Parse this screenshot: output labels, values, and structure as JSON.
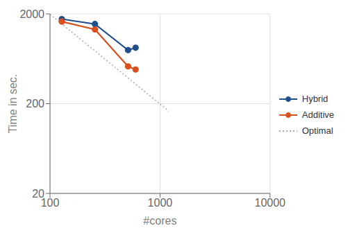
{
  "chart_data": {
    "type": "line",
    "xlabel": "#cores",
    "ylabel": "Time in sec.",
    "log": true,
    "grid": true,
    "legend": "right",
    "xlim": [
      100,
      10000
    ],
    "xticks": [
      100,
      1000,
      10000
    ],
    "ylim": [
      20,
      2000
    ],
    "yticks": [
      20,
      200,
      2000
    ],
    "series": [
      {
        "name": "Hybrid",
        "color": "#1f4e8c",
        "marker": "circle",
        "line_style": "solid",
        "x": [
          128,
          256,
          512,
          600
        ],
        "values": [
          1750,
          1540,
          790,
          840
        ]
      },
      {
        "name": "Additive",
        "color": "#d94f1e",
        "marker": "circle",
        "line_style": "solid",
        "x": [
          128,
          256,
          512,
          600
        ],
        "values": [
          1640,
          1340,
          520,
          480
        ]
      },
      {
        "name": "Optimal",
        "color": "#aaaaaa",
        "marker": "none",
        "line_style": "dotted",
        "x": [
          100,
          1200
        ],
        "values": [
          1980,
          165
        ]
      }
    ]
  }
}
